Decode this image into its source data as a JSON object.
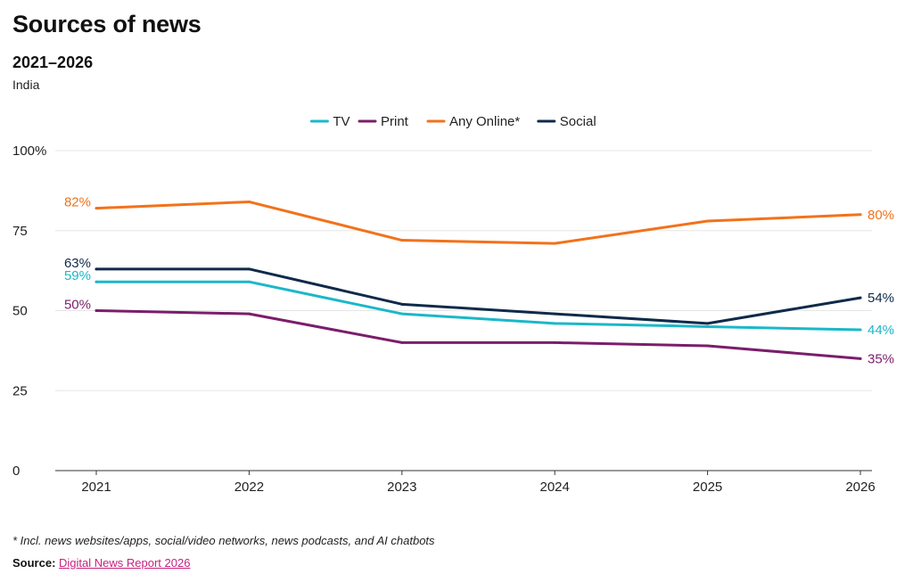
{
  "header": {
    "title": "Sources of news",
    "subtitle": "2021–2026",
    "region": "India"
  },
  "footer": {
    "footnote": "* Incl. news websites/apps, social/video networks, news podcasts, and AI chatbots",
    "source_label": "Source:",
    "source_link": "Digital News Report 2026"
  },
  "chart_data": {
    "type": "line",
    "title": "Sources of news",
    "subtitle": "2021–2026",
    "x": [
      "2021",
      "2022",
      "2023",
      "2024",
      "2025",
      "2026"
    ],
    "ylim": [
      0,
      100
    ],
    "yticks": [
      0,
      25,
      50,
      75,
      100
    ],
    "ytick_labels": [
      "0",
      "25",
      "50",
      "75",
      "100%"
    ],
    "grid": true,
    "legend_position": "top-center",
    "series": [
      {
        "name": "TV",
        "color": "#1ab8c9",
        "values": [
          59,
          59,
          49,
          46,
          45,
          44
        ],
        "start_label": "59%",
        "end_label": "44%"
      },
      {
        "name": "Print",
        "color": "#7b1d6b",
        "values": [
          50,
          49,
          40,
          40,
          39,
          35
        ],
        "start_label": "50%",
        "end_label": "35%"
      },
      {
        "name": "Any Online*",
        "color": "#f2721b",
        "values": [
          82,
          84,
          72,
          71,
          78,
          80
        ],
        "start_label": "82%",
        "end_label": "80%"
      },
      {
        "name": "Social",
        "color": "#0f2a4a",
        "values": [
          63,
          63,
          52,
          49,
          46,
          54
        ],
        "start_label": "63%",
        "end_label": "54%"
      }
    ]
  }
}
